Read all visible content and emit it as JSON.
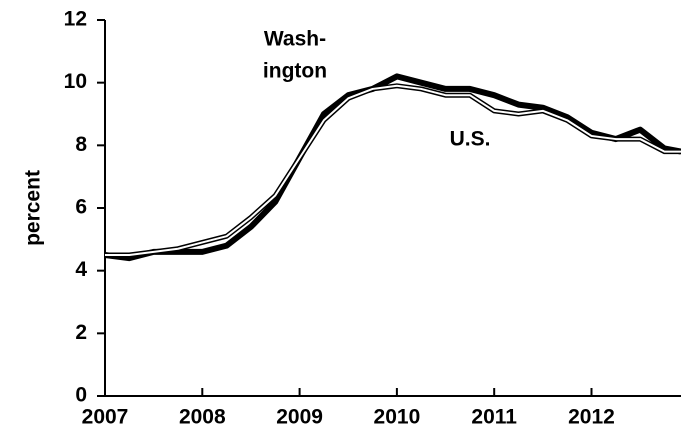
{
  "chart_data": {
    "type": "line",
    "y_label": "percent",
    "annotations": [
      {
        "text": [
          "Wash-",
          "ington"
        ],
        "series": 0
      },
      {
        "text": [
          "U.S."
        ],
        "series": 1
      }
    ],
    "x": [
      2007,
      2007.25,
      2007.5,
      2007.75,
      2008,
      2008.25,
      2008.5,
      2008.75,
      2009,
      2009.25,
      2009.5,
      2009.75,
      2010,
      2010.25,
      2010.5,
      2010.75,
      2011,
      2011.25,
      2011.5,
      2011.75,
      2012,
      2012.25,
      2012.5,
      2012.75,
      2012.92
    ],
    "series": [
      {
        "name": "Washington",
        "color": "#000000",
        "values": [
          4.5,
          4.4,
          4.6,
          4.6,
          4.6,
          4.8,
          5.4,
          6.2,
          7.6,
          9.0,
          9.6,
          9.8,
          10.2,
          10.0,
          9.8,
          9.8,
          9.6,
          9.3,
          9.2,
          8.9,
          8.4,
          8.2,
          8.5,
          7.9,
          7.8
        ]
      },
      {
        "name": "U.S.",
        "color": "#ffffff",
        "values": [
          4.5,
          4.5,
          4.6,
          4.7,
          4.9,
          5.1,
          5.7,
          6.4,
          7.6,
          8.8,
          9.5,
          9.8,
          9.9,
          9.8,
          9.6,
          9.6,
          9.1,
          9.0,
          9.1,
          8.8,
          8.3,
          8.2,
          8.2,
          7.8,
          7.8
        ]
      }
    ],
    "xlim": [
      2007,
      2012.92
    ],
    "xticks": [
      2007,
      2008,
      2009,
      2010,
      2011,
      2012
    ],
    "ylim": [
      0,
      12
    ],
    "yticks": [
      0,
      2,
      4,
      6,
      8,
      10,
      12
    ]
  }
}
